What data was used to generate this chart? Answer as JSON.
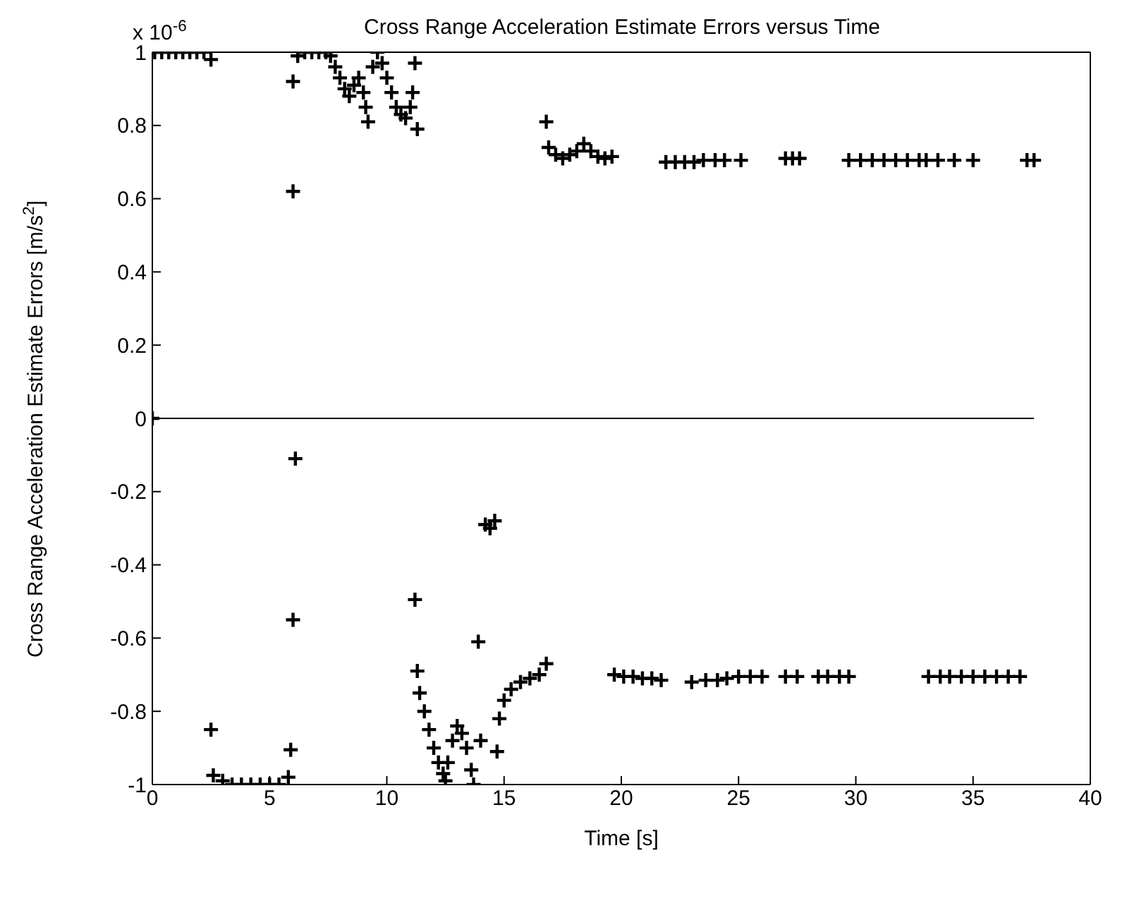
{
  "chart_data": {
    "type": "scatter",
    "title": "Cross Range Acceleration Estimate Errors versus Time",
    "xlabel": "Time [s]",
    "ylabel": "Cross Range Acceleration Estimate Errors [m/s$^{2}$]",
    "annotations": [
      "x 10$^{-6}$"
    ],
    "xlim": [
      0,
      40
    ],
    "xticks": [
      0,
      5,
      10,
      15,
      20,
      25,
      30,
      35,
      40
    ],
    "ylim": [
      -1,
      1
    ],
    "yticks": [
      -1,
      -0.8,
      -0.6,
      -0.4,
      -0.2,
      0,
      0.2,
      0.4,
      0.6,
      0.8,
      1
    ],
    "legend": false,
    "marker": "cross",
    "series": [
      {
        "type": "line",
        "marker": "none",
        "color": "#000000",
        "x": [
          0,
          37.6
        ],
        "values": [
          0,
          0
        ]
      },
      {
        "color": "#000000",
        "x": [
          0.1,
          0.4,
          0.7,
          1.0,
          1.3,
          1.6,
          1.9,
          2.2,
          2.5,
          6.0,
          6.0,
          6.2,
          6.5,
          6.8,
          7.1,
          7.4,
          7.6,
          7.8,
          8.0,
          8.2,
          8.4,
          8.6,
          8.8,
          9.0,
          9.1,
          9.2,
          9.4,
          9.6,
          9.8,
          10.0,
          10.2,
          10.4,
          10.6,
          10.8,
          11.0,
          11.1,
          11.2,
          11.3,
          16.8,
          16.9,
          17.2,
          17.5,
          17.8,
          18.1,
          18.4,
          18.7,
          19.0,
          19.3,
          19.6,
          21.9,
          22.3,
          22.7,
          23.1,
          23.5,
          24.0,
          24.4,
          25.1,
          27.0,
          27.3,
          27.6,
          29.7,
          30.2,
          30.7,
          31.2,
          31.7,
          32.2,
          32.7,
          33.0,
          33.5,
          34.2,
          35.0,
          37.3,
          37.6,
          0,
          2.5,
          2.6,
          3.0,
          3.4,
          3.8,
          4.2,
          4.6,
          5.0,
          5.4,
          5.8,
          5.9,
          6.0,
          6.1,
          11.2,
          11.3,
          11.4,
          11.6,
          11.8,
          12.0,
          12.2,
          12.4,
          12.5,
          12.6,
          12.8,
          13.0,
          13.2,
          13.4,
          13.6,
          13.7,
          13.9,
          14.0,
          14.2,
          14.4,
          14.6,
          14.7,
          14.8,
          15.0,
          15.3,
          15.7,
          16.1,
          16.5,
          16.8,
          19.7,
          20.1,
          20.5,
          20.9,
          21.3,
          21.7,
          23.0,
          23.6,
          24.1,
          24.5,
          25.0,
          25.5,
          26.0,
          27.0,
          27.5,
          28.4,
          28.8,
          29.3,
          29.7,
          33.1,
          33.6,
          34.0,
          34.5,
          35.0,
          35.5,
          36.0,
          36.5,
          37.0
        ],
        "values": [
          1,
          1,
          1,
          1,
          1,
          1,
          1,
          1,
          0.98,
          0.62,
          0.92,
          0.99,
          1,
          1,
          1,
          1,
          0.99,
          0.96,
          0.93,
          0.9,
          0.88,
          0.91,
          0.93,
          0.89,
          0.85,
          0.81,
          0.96,
          1,
          0.97,
          0.93,
          0.89,
          0.85,
          0.83,
          0.82,
          0.85,
          0.89,
          0.97,
          0.79,
          0.81,
          0.74,
          0.72,
          0.71,
          0.72,
          0.73,
          0.75,
          0.73,
          0.715,
          0.71,
          0.715,
          0.7,
          0.7,
          0.7,
          0.7,
          0.705,
          0.705,
          0.705,
          0.705,
          0.71,
          0.71,
          0.71,
          0.705,
          0.705,
          0.705,
          0.705,
          0.705,
          0.705,
          0.705,
          0.705,
          0.705,
          0.705,
          0.705,
          0.705,
          0.705,
          0,
          -0.85,
          -0.975,
          -0.99,
          -1,
          -1,
          -1,
          -1,
          -1,
          -1,
          -0.98,
          -0.905,
          -0.55,
          -0.11,
          -0.495,
          -0.69,
          -0.75,
          -0.8,
          -0.85,
          -0.9,
          -0.94,
          -0.97,
          -0.99,
          -0.94,
          -0.88,
          -0.84,
          -0.86,
          -0.9,
          -0.96,
          -1,
          -0.61,
          -0.88,
          -0.29,
          -0.3,
          -0.28,
          -0.91,
          -0.82,
          -0.77,
          -0.74,
          -0.72,
          -0.71,
          -0.7,
          -0.67,
          -0.7,
          -0.705,
          -0.705,
          -0.71,
          -0.71,
          -0.715,
          -0.72,
          -0.715,
          -0.715,
          -0.71,
          -0.705,
          -0.705,
          -0.705,
          -0.705,
          -0.705,
          -0.705,
          -0.705,
          -0.705,
          -0.705,
          -0.705,
          -0.705,
          -0.705,
          -0.705,
          -0.705,
          -0.705,
          -0.705,
          -0.705,
          -0.705
        ]
      }
    ]
  }
}
